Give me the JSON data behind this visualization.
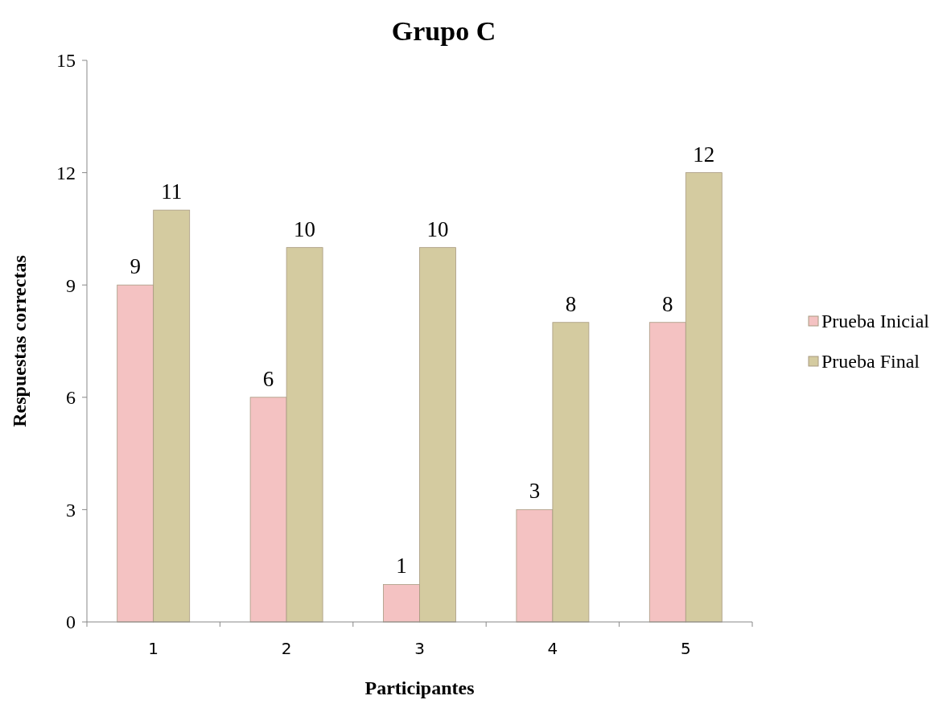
{
  "chart_data": {
    "type": "bar",
    "title": "Grupo C",
    "xlabel": "Participantes",
    "ylabel": "Respuestas correctas",
    "categories": [
      "1",
      "2",
      "3",
      "4",
      "5"
    ],
    "series": [
      {
        "name": "Prueba Inicial",
        "color": "#f4c2c2",
        "values": [
          9,
          6,
          1,
          3,
          8
        ]
      },
      {
        "name": "Prueba Final",
        "color": "#d4cba0",
        "values": [
          11,
          10,
          10,
          8,
          12
        ]
      }
    ],
    "ylim": [
      0,
      15
    ],
    "yticks": [
      0,
      3,
      6,
      9,
      12,
      15
    ],
    "grid": false,
    "legend": "right",
    "data_labels": true
  }
}
